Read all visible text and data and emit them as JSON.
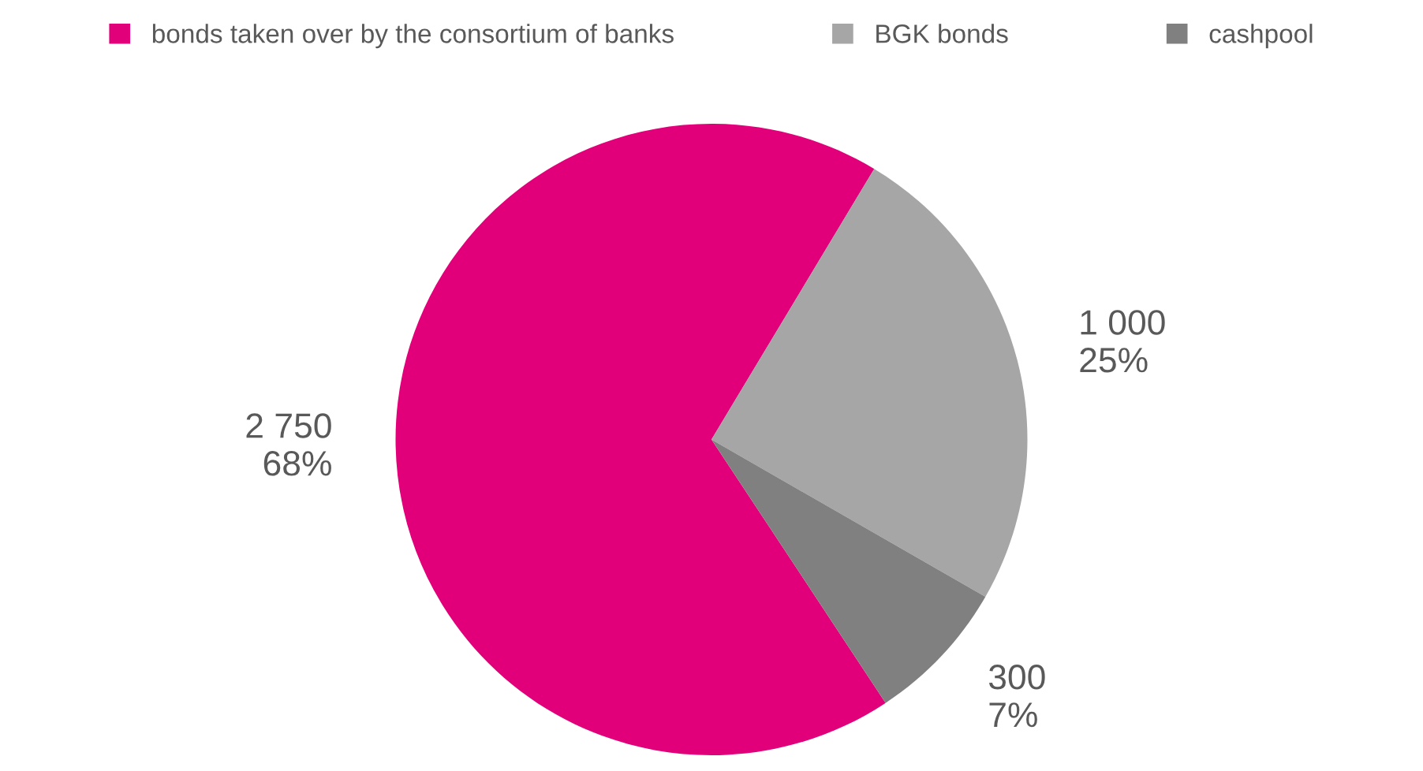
{
  "chart_data": {
    "type": "pie",
    "categories": [
      "bonds taken over by the consortium of banks",
      "BGK bonds",
      "cashpool"
    ],
    "values": [
      2750,
      1000,
      300
    ],
    "colors": [
      "#e2007a",
      "#a6a6a6",
      "#808080"
    ],
    "value_labels": [
      "2 750\n68%",
      "1 000\n25%",
      "300\n7%"
    ],
    "legend": "top"
  }
}
